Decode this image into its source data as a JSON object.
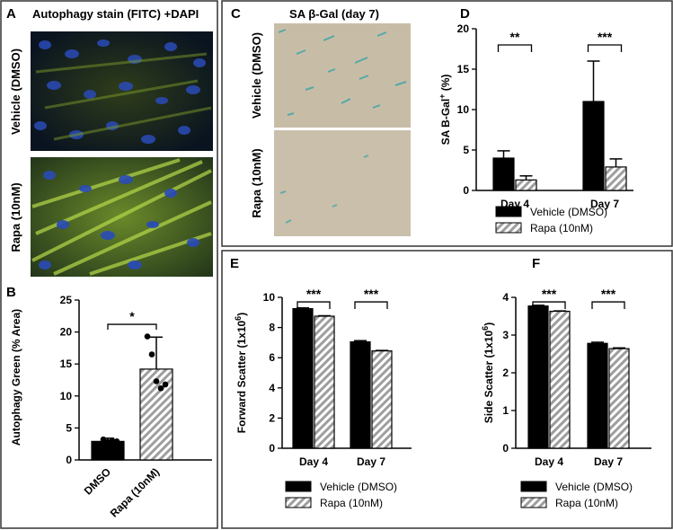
{
  "panels": {
    "A": {
      "letter": "A",
      "title": "Autophagy stain (FITC) +DAPI",
      "row_labels": [
        "Vehicle (DMSO)",
        "Rapa (10nM)"
      ]
    },
    "C": {
      "letter": "C",
      "title": "SA β-Gal (day 7)",
      "row_labels": [
        "Vehicle (DMSO)",
        "Rapa (10nM)"
      ]
    }
  },
  "colors": {
    "vehicle": "#000000",
    "rapa_hatch": "#9e9e9e",
    "border": "#333333"
  },
  "chart_data": [
    {
      "id": "B",
      "letter": "B",
      "type": "bar",
      "ylabel": "Autophagy Green (% Area)",
      "categories": [
        "DMSO",
        "Rapa (10nM)"
      ],
      "values": [
        2.9,
        14.2
      ],
      "errors": [
        0.5,
        5.0
      ],
      "points": [
        [
          2.5,
          3.2,
          2.8,
          3.0,
          2.9
        ],
        [
          19.3,
          16.5,
          12.3,
          11.2,
          11.8
        ]
      ],
      "ylim": [
        0,
        25
      ],
      "yticks": [
        0,
        5,
        10,
        15,
        20,
        25
      ],
      "significance": [
        {
          "pair": [
            0,
            1
          ],
          "label": "*"
        }
      ]
    },
    {
      "id": "D",
      "letter": "D",
      "type": "bar",
      "ylabel": "SA B-Gal+ (%)",
      "categories": [
        "Day 4",
        "Day 7"
      ],
      "series": [
        {
          "name": "Vehicle (DMSO)",
          "values": [
            4.0,
            11.0
          ],
          "errors": [
            0.9,
            5.0
          ]
        },
        {
          "name": "Rapa (10nM)",
          "values": [
            1.3,
            2.9
          ],
          "errors": [
            0.5,
            1.0
          ]
        }
      ],
      "ylim": [
        0,
        20
      ],
      "yticks": [
        0,
        5,
        10,
        15,
        20
      ],
      "significance": [
        {
          "group": 0,
          "label": "**"
        },
        {
          "group": 1,
          "label": "***"
        }
      ]
    },
    {
      "id": "E",
      "letter": "E",
      "type": "bar",
      "ylabel": "Forward Scatter (1x10⁶)",
      "categories": [
        "Day 4",
        "Day 7"
      ],
      "series": [
        {
          "name": "Vehicle (DMSO)",
          "values": [
            9.25,
            7.05
          ],
          "errors": [
            0.05,
            0.08
          ]
        },
        {
          "name": "Rapa (10nM)",
          "values": [
            8.75,
            6.45
          ],
          "errors": [
            0.03,
            0.03
          ]
        }
      ],
      "ylim": [
        0,
        10
      ],
      "yticks": [
        0,
        2,
        4,
        6,
        8,
        10
      ],
      "significance": [
        {
          "group": 0,
          "label": "***"
        },
        {
          "group": 1,
          "label": "***"
        }
      ]
    },
    {
      "id": "F",
      "letter": "F",
      "type": "bar",
      "ylabel": "Side Scatter (1x10⁶)",
      "categories": [
        "Day 4",
        "Day 7"
      ],
      "series": [
        {
          "name": "Vehicle (DMSO)",
          "values": [
            3.77,
            2.78
          ],
          "errors": [
            0.02,
            0.03
          ]
        },
        {
          "name": "Rapa (10nM)",
          "values": [
            3.63,
            2.64
          ],
          "errors": [
            0.01,
            0.02
          ]
        }
      ],
      "ylim": [
        0,
        4
      ],
      "yticks": [
        0,
        1,
        2,
        3,
        4
      ],
      "significance": [
        {
          "group": 0,
          "label": "***"
        },
        {
          "group": 1,
          "label": "***"
        }
      ]
    }
  ]
}
